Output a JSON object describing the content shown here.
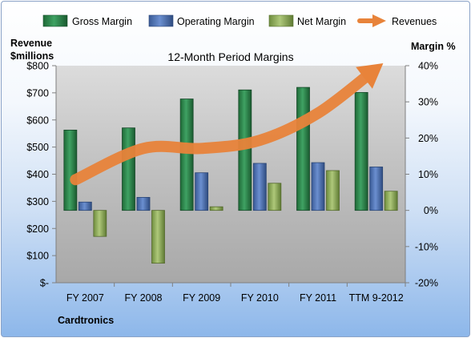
{
  "chart_data": {
    "type": "bar",
    "title": "12-Month Period Margins",
    "company": "Cardtronics",
    "categories": [
      "FY 2007",
      "FY 2008",
      "FY 2009",
      "FY 2010",
      "FY 2011",
      "TTM 9-2012"
    ],
    "y_left_label_line1": "Revenue",
    "y_left_label_line2": "$millions",
    "y_right_label": "Margin %",
    "y_left_ticks": [
      "$-",
      "$100",
      "$200",
      "$300",
      "$400",
      "$500",
      "$600",
      "$700",
      "$800"
    ],
    "y_right_ticks": [
      "-20%",
      "-10%",
      "0%",
      "10%",
      "20%",
      "30%",
      "40%"
    ],
    "ylim_left": [
      0,
      800
    ],
    "ylim_right": [
      -20,
      40
    ],
    "grid": false,
    "legend_position": "top",
    "series": [
      {
        "name": "Gross Margin",
        "kind": "bar",
        "axis": "right",
        "color": "#2e8b4e",
        "values": [
          22.2,
          22.8,
          30.8,
          33.3,
          34.0,
          32.6
        ]
      },
      {
        "name": "Operating Margin",
        "kind": "bar",
        "axis": "right",
        "color": "#4f73b5",
        "values": [
          2.3,
          3.6,
          10.4,
          13.0,
          13.2,
          12.0
        ]
      },
      {
        "name": "Net Margin",
        "kind": "bar",
        "axis": "right",
        "color": "#8fb15a",
        "values": [
          -7.2,
          -14.6,
          1.0,
          7.5,
          11.0,
          5.3
        ]
      },
      {
        "name": "Revenues",
        "kind": "line",
        "axis": "left",
        "color": "#e8833a",
        "values": [
          380,
          495,
          495,
          525,
          625,
          780
        ]
      }
    ]
  }
}
